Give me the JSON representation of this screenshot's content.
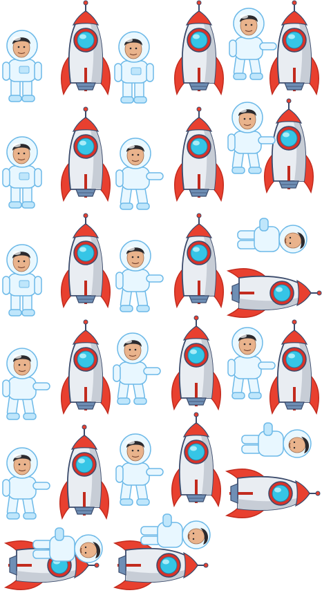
{
  "sheet": {
    "kind": "sprite-sheet",
    "background": "#ffffff",
    "colors": {
      "rocket_body": "#e9edf2",
      "rocket_shade": "#c7cdd6",
      "rocket_red": "#e8402f",
      "rocket_red_dark": "#c22b1e",
      "window_ring": "#d6322a",
      "window_glass": "#36c5e6",
      "window_glass_light": "#a8ecf8",
      "nozzle": "#6f8fb5",
      "outline": "#3a4a6b",
      "suit": "#e8f7ff",
      "suit_shade": "#bfe6fb",
      "suit_outline": "#6cb9e8",
      "helmet_glass": "#eaf8ff",
      "skin": "#e9b38c",
      "hair": "#2b2a2e"
    },
    "rows": [
      {
        "row": 1,
        "frames": [
          "astronaut-standing",
          "rocket-upright",
          "astronaut-standing",
          "rocket-upright",
          "astronaut-climbing-rocket"
        ]
      },
      {
        "row": 2,
        "frames": [
          "astronaut-standing",
          "rocket-upright",
          "astronaut-standing",
          "rocket-upright",
          "astronaut-climbing-rocket"
        ]
      },
      {
        "row": 3,
        "frames": [
          "astronaut-standing",
          "rocket-upright",
          "astronaut-walking",
          "rocket-upright",
          "astronaut-flying",
          "rocket-horizontal"
        ]
      },
      {
        "row": 4,
        "frames": [
          "astronaut-walking",
          "rocket-upright",
          "astronaut-walking",
          "rocket-upright",
          "astronaut-climbing-rocket"
        ]
      },
      {
        "row": 5,
        "frames": [
          "astronaut-walking",
          "rocket-upright",
          "astronaut-walking",
          "rocket-upright",
          "astronaut-flying",
          "rocket-horizontal"
        ]
      },
      {
        "row": 6,
        "frames": [
          "astronaut-riding-rocket",
          "astronaut-riding-rocket"
        ]
      }
    ]
  }
}
